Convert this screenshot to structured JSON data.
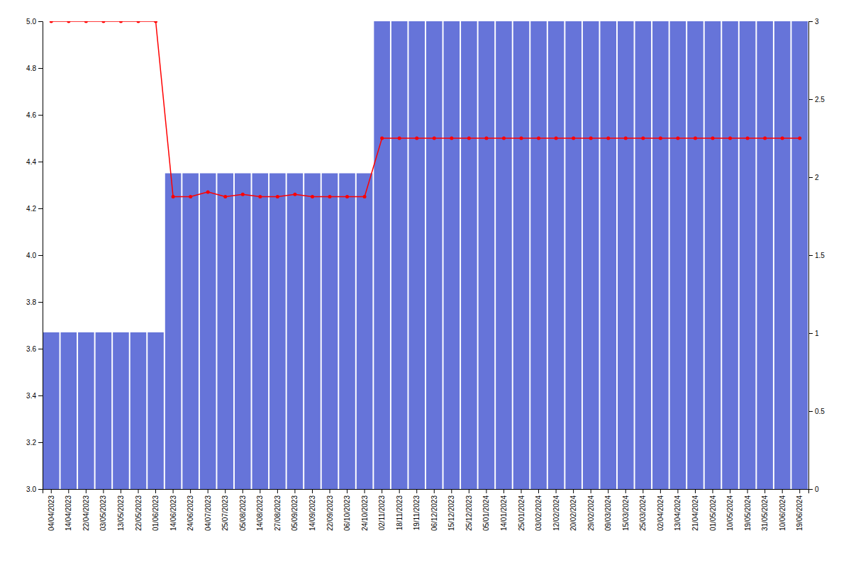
{
  "chart_data": {
    "type": "combo",
    "categories": [
      "04/04/2023",
      "14/04/2023",
      "22/04/2023",
      "03/05/2023",
      "13/05/2023",
      "22/05/2023",
      "01/06/2023",
      "14/06/2023",
      "24/06/2023",
      "04/07/2023",
      "25/07/2023",
      "05/08/2023",
      "14/08/2023",
      "27/08/2023",
      "05/09/2023",
      "14/09/2023",
      "22/09/2023",
      "06/10/2023",
      "24/10/2023",
      "02/11/2023",
      "18/11/2023",
      "19/11/2023",
      "06/12/2023",
      "15/12/2023",
      "25/12/2023",
      "05/01/2024",
      "14/01/2024",
      "25/01/2024",
      "03/02/2024",
      "12/02/2024",
      "20/02/2024",
      "29/02/2024",
      "09/03/2024",
      "15/03/2024",
      "25/03/2024",
      "02/04/2024",
      "13/04/2024",
      "21/04/2024",
      "01/05/2024",
      "10/05/2024",
      "19/05/2024",
      "31/05/2024",
      "10/06/2024",
      "19/06/2024"
    ],
    "series": [
      {
        "type": "bar",
        "color": "#6674d9",
        "values": [
          3.67,
          3.67,
          3.67,
          3.67,
          3.67,
          3.67,
          3.67,
          4.35,
          4.35,
          4.35,
          4.35,
          4.35,
          4.35,
          4.35,
          4.35,
          4.35,
          4.35,
          4.35,
          4.35,
          5.0,
          5.0,
          5.0,
          5.0,
          5.0,
          5.0,
          5.0,
          5.0,
          5.0,
          5.0,
          5.0,
          5.0,
          5.0,
          5.0,
          5.0,
          5.0,
          5.0,
          5.0,
          5.0,
          5.0,
          5.0,
          5.0,
          5.0,
          5.0,
          5.0
        ]
      },
      {
        "type": "line",
        "color": "#ff0000",
        "marker": "circle",
        "values": [
          5.0,
          5.0,
          5.0,
          5.0,
          5.0,
          5.0,
          5.0,
          4.25,
          4.25,
          4.27,
          4.25,
          4.26,
          4.25,
          4.25,
          4.26,
          4.25,
          4.25,
          4.25,
          4.25,
          4.5,
          4.5,
          4.5,
          4.5,
          4.5,
          4.5,
          4.5,
          4.5,
          4.5,
          4.5,
          4.5,
          4.5,
          4.5,
          4.5,
          4.5,
          4.5,
          4.5,
          4.5,
          4.5,
          4.5,
          4.5,
          4.5,
          4.5,
          4.5,
          4.5
        ]
      }
    ],
    "ylim": [
      3.0,
      5.0
    ],
    "yticks": [
      {
        "value": 3.0,
        "label": "3.0"
      },
      3.2,
      3.4,
      3.6,
      3.8,
      {
        "value": 4.0,
        "label": "4.0"
      },
      4.2,
      4.4,
      4.6,
      4.8,
      {
        "value": 5.0,
        "label": "5.0"
      }
    ],
    "y2lim": [
      0,
      3.0
    ],
    "y2ticks": [
      0,
      0.5,
      1,
      1.5,
      2,
      2.5,
      3
    ],
    "grid": false
  }
}
